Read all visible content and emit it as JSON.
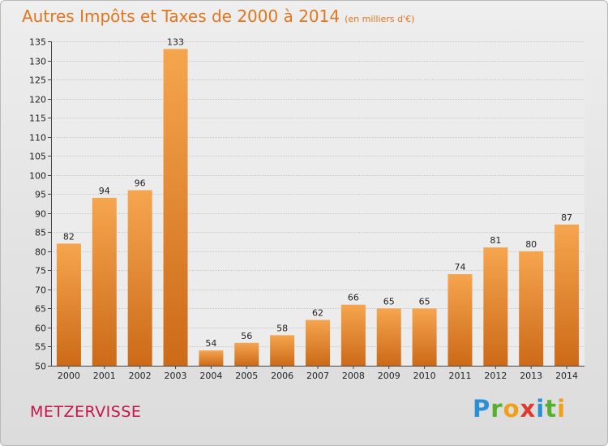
{
  "title": "Autres Impôts et Taxes de 2000 à 2014",
  "subtitle": "(en milliers d'€)",
  "location": "METZERVISSE",
  "logo": {
    "text": "Proxiti",
    "letters": [
      {
        "ch": "P",
        "color": "#2a8fd6"
      },
      {
        "ch": "r",
        "color": "#56b030"
      },
      {
        "ch": "o",
        "color": "#f0a018"
      },
      {
        "ch": "x",
        "color": "#e0392e"
      },
      {
        "ch": "i",
        "color": "#2a8fd6"
      },
      {
        "ch": "t",
        "color": "#56b030"
      },
      {
        "ch": "i",
        "color": "#f0a018"
      }
    ]
  },
  "colors": {
    "bar_light": "#f6a54f",
    "bar_dark": "#cc6a18",
    "title": "#e0761d",
    "location": "#c8144a"
  },
  "chart_data": {
    "type": "bar",
    "title": "Autres Impôts et Taxes de 2000 à 2014",
    "subtitle": "(en milliers d'€)",
    "categories": [
      "2000",
      "2001",
      "2002",
      "2003",
      "2004",
      "2005",
      "2006",
      "2007",
      "2008",
      "2009",
      "2010",
      "2011",
      "2012",
      "2013",
      "2014"
    ],
    "values": [
      82,
      94,
      96,
      133,
      54,
      56,
      58,
      62,
      66,
      65,
      65,
      74,
      81,
      80,
      87
    ],
    "data_labels": [
      "82",
      "94",
      "96",
      "133",
      "54",
      "56",
      "58",
      "62",
      "66",
      "65",
      "65",
      "74",
      "81",
      "80",
      "87"
    ],
    "xlabel": "",
    "ylabel": "",
    "ylim": [
      50,
      135
    ],
    "yticks": [
      50,
      55,
      60,
      65,
      70,
      75,
      80,
      85,
      90,
      95,
      100,
      105,
      110,
      115,
      120,
      125,
      130,
      135
    ],
    "grid": true
  }
}
